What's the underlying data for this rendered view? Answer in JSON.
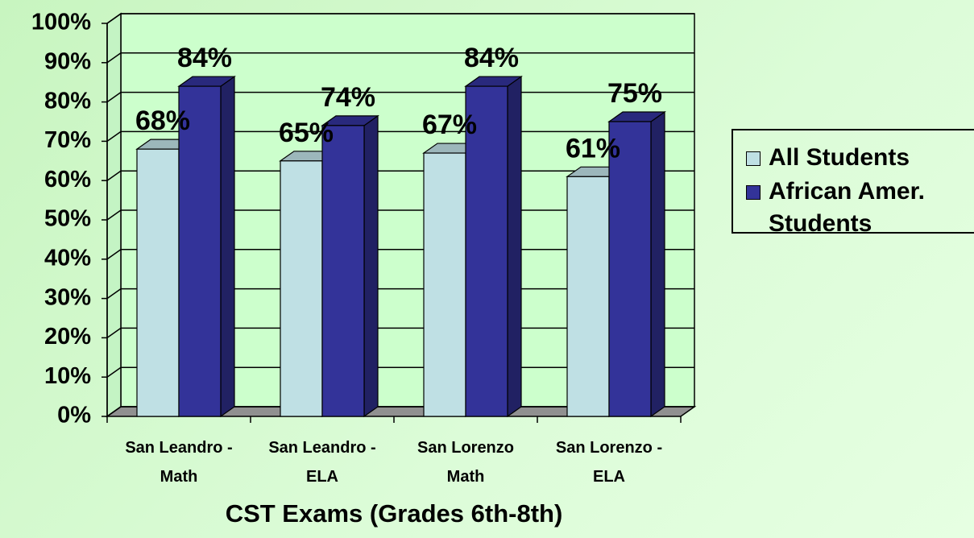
{
  "chart_data": {
    "type": "bar3d",
    "x_label": "CST Exams (Grades 6th-8th)",
    "categories": [
      "San Leandro - Math",
      "San Leandro - ELA",
      "San Lorenzo Math",
      "San Lorenzo - ELA"
    ],
    "series": [
      {
        "name": "All Students",
        "color": "#bfe0e4",
        "values": [
          68,
          65,
          67,
          61
        ],
        "value_labels": [
          "68%",
          "65%",
          "67%",
          "61%"
        ]
      },
      {
        "name": "African Amer. Students",
        "color": "#333399",
        "values": [
          84,
          74,
          84,
          75
        ],
        "value_labels": [
          "84%",
          "74%",
          "84%",
          "75%"
        ]
      }
    ],
    "ylim": [
      0,
      100
    ],
    "yticks": [
      {
        "value": 0,
        "label": "0%"
      },
      {
        "value": 10,
        "label": "10%"
      },
      {
        "value": 20,
        "label": "20%"
      },
      {
        "value": 30,
        "label": "30%"
      },
      {
        "value": 40,
        "label": "40%"
      },
      {
        "value": 50,
        "label": "50%"
      },
      {
        "value": 60,
        "label": "60%"
      },
      {
        "value": 70,
        "label": "70%"
      },
      {
        "value": 80,
        "label": "80%"
      },
      {
        "value": 90,
        "label": "90%"
      },
      {
        "value": 100,
        "label": "100%"
      }
    ],
    "grid": true,
    "legend": "right"
  }
}
